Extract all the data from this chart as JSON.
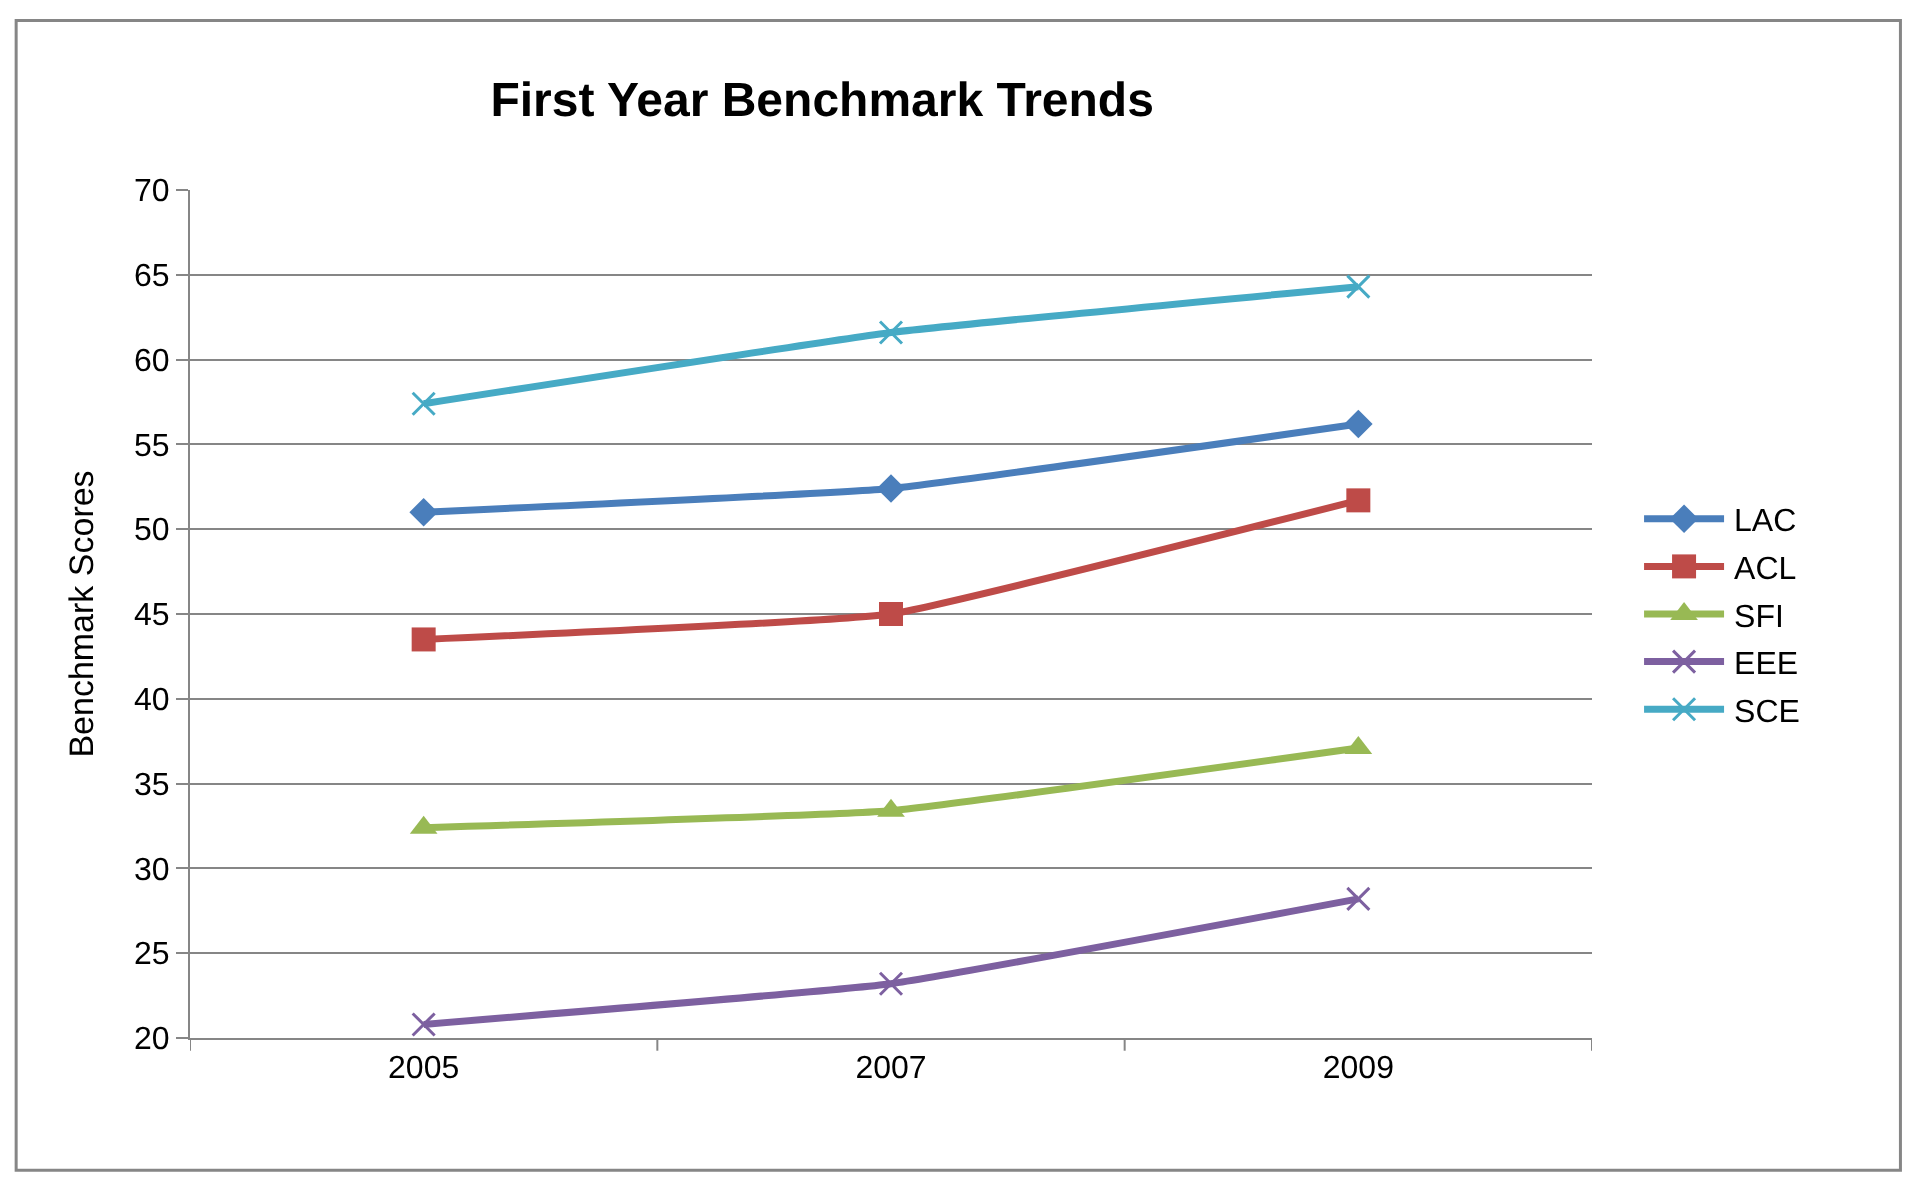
{
  "chart_data": {
    "type": "line",
    "title": "First Year Benchmark Trends",
    "ylabel": "Benchmark Scores",
    "categories": [
      "2005",
      "2007",
      "2009"
    ],
    "series": [
      {
        "name": "LAC",
        "color": "#4a7ebb",
        "marker": "diamond",
        "values": [
          51,
          52.4,
          56.2
        ]
      },
      {
        "name": "ACL",
        "color": "#be4b48",
        "marker": "square",
        "values": [
          43.5,
          45,
          51.7
        ]
      },
      {
        "name": "SFI",
        "color": "#98b954",
        "marker": "triangle",
        "values": [
          32.4,
          33.4,
          37.1
        ]
      },
      {
        "name": "EEE",
        "color": "#7d60a0",
        "marker": "cross",
        "values": [
          20.8,
          23.2,
          28.2
        ]
      },
      {
        "name": "SCE",
        "color": "#46aac5",
        "marker": "cross",
        "values": [
          57.4,
          61.6,
          64.3
        ]
      }
    ],
    "ylim": [
      20,
      70
    ],
    "yticks": [
      20,
      25,
      30,
      35,
      40,
      45,
      50,
      55,
      60,
      65,
      70
    ],
    "grid": "y",
    "legend": "right"
  }
}
